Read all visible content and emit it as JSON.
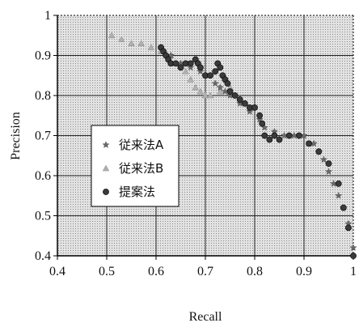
{
  "chart_data": {
    "type": "scatter",
    "title": "",
    "xlabel": "Recall",
    "ylabel": "Precision",
    "xlim": [
      0.4,
      1.0
    ],
    "ylim": [
      0.4,
      1.0
    ],
    "xticks": [
      0.4,
      0.5,
      0.6,
      0.7,
      0.8,
      0.9,
      1.0
    ],
    "xtick_labels": [
      "0.4",
      "0.5",
      "0.6",
      "0.7",
      "0.8",
      "0.9",
      "1"
    ],
    "yticks": [
      0.4,
      0.5,
      0.6,
      0.7,
      0.8,
      0.9,
      1.0
    ],
    "ytick_labels": [
      "0.4",
      "0.5",
      "0.6",
      "0.7",
      "0.8",
      "0.9",
      "1"
    ],
    "grid": true,
    "legend_position": "middle-left",
    "series": [
      {
        "name": "従来法A",
        "marker": "star",
        "color": "#6a6a6a",
        "x": [
          0.61,
          0.63,
          0.65,
          0.67,
          0.69,
          0.7,
          0.72,
          0.73,
          0.74,
          0.75,
          0.77,
          0.79,
          0.81,
          0.82,
          0.84,
          0.86,
          0.88,
          0.9,
          0.92,
          0.93,
          0.94,
          0.95,
          0.96,
          0.97,
          0.98,
          0.99,
          1.0
        ],
        "y": [
          0.92,
          0.9,
          0.88,
          0.87,
          0.86,
          0.85,
          0.83,
          0.82,
          0.81,
          0.8,
          0.78,
          0.76,
          0.74,
          0.72,
          0.71,
          0.7,
          0.7,
          0.7,
          0.68,
          0.66,
          0.64,
          0.61,
          0.58,
          0.55,
          0.52,
          0.48,
          0.42
        ]
      },
      {
        "name": "従来法B",
        "marker": "triangle",
        "color": "#b0b0b0",
        "x": [
          0.51,
          0.53,
          0.55,
          0.57,
          0.59,
          0.61,
          0.63,
          0.64,
          0.66,
          0.67,
          0.68,
          0.69,
          0.7,
          0.71,
          0.73,
          0.75
        ],
        "y": [
          0.95,
          0.94,
          0.93,
          0.93,
          0.92,
          0.91,
          0.9,
          0.88,
          0.86,
          0.84,
          0.82,
          0.81,
          0.8,
          0.8,
          0.81,
          0.82
        ]
      },
      {
        "name": "提案法",
        "marker": "circle",
        "color": "#3a3a3a",
        "x": [
          0.61,
          0.615,
          0.62,
          0.625,
          0.63,
          0.64,
          0.65,
          0.66,
          0.67,
          0.68,
          0.685,
          0.69,
          0.7,
          0.71,
          0.72,
          0.725,
          0.73,
          0.735,
          0.74,
          0.745,
          0.75,
          0.76,
          0.77,
          0.78,
          0.79,
          0.8,
          0.81,
          0.815,
          0.82,
          0.83,
          0.84,
          0.85,
          0.87,
          0.89,
          0.91,
          0.93,
          0.95,
          0.97,
          0.98,
          0.99,
          1.0
        ],
        "y": [
          0.92,
          0.91,
          0.9,
          0.89,
          0.88,
          0.88,
          0.87,
          0.88,
          0.88,
          0.89,
          0.88,
          0.87,
          0.85,
          0.85,
          0.86,
          0.88,
          0.87,
          0.85,
          0.84,
          0.83,
          0.81,
          0.8,
          0.79,
          0.78,
          0.77,
          0.77,
          0.75,
          0.73,
          0.7,
          0.69,
          0.7,
          0.69,
          0.7,
          0.7,
          0.68,
          0.66,
          0.63,
          0.58,
          0.52,
          0.47,
          0.4
        ]
      }
    ]
  }
}
